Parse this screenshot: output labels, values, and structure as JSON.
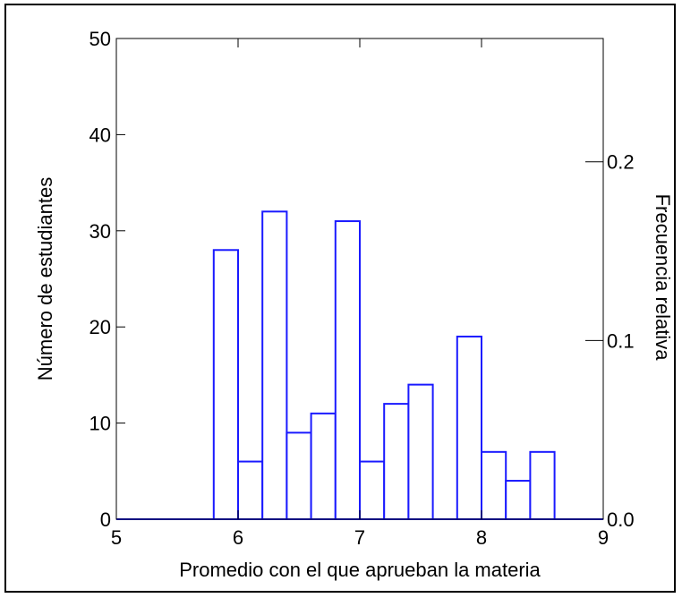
{
  "chart_data": {
    "type": "bar",
    "subtype": "histogram",
    "title": "",
    "xlabel": "Promedio con el que aprueban la materia",
    "ylabel": "Número de estudiantes",
    "y2label": "Frecuencia relativa",
    "xlim": [
      5,
      9
    ],
    "ylim": [
      0,
      50
    ],
    "y2lim": [
      0,
      0.269
    ],
    "xticks": [
      "5",
      "6",
      "7",
      "8",
      "9"
    ],
    "yticks": [
      "0",
      "10",
      "20",
      "30",
      "40",
      "50"
    ],
    "y2ticks": [
      "0.0",
      "0.1",
      "0.2"
    ],
    "grid": false,
    "bar_color": "#1a1aff",
    "bins": [
      {
        "x0": 5.8,
        "x1": 6.0,
        "count": 28
      },
      {
        "x0": 6.0,
        "x1": 6.2,
        "count": 6
      },
      {
        "x0": 6.2,
        "x1": 6.4,
        "count": 32
      },
      {
        "x0": 6.4,
        "x1": 6.6,
        "count": 9
      },
      {
        "x0": 6.6,
        "x1": 6.8,
        "count": 11
      },
      {
        "x0": 6.8,
        "x1": 7.0,
        "count": 31
      },
      {
        "x0": 7.0,
        "x1": 7.2,
        "count": 6
      },
      {
        "x0": 7.2,
        "x1": 7.4,
        "count": 12
      },
      {
        "x0": 7.4,
        "x1": 7.6,
        "count": 14
      },
      {
        "x0": 7.6,
        "x1": 7.8,
        "count": 0
      },
      {
        "x0": 7.8,
        "x1": 8.0,
        "count": 19
      },
      {
        "x0": 8.0,
        "x1": 8.2,
        "count": 7
      },
      {
        "x0": 8.2,
        "x1": 8.4,
        "count": 4
      },
      {
        "x0": 8.4,
        "x1": 8.6,
        "count": 7
      }
    ]
  }
}
